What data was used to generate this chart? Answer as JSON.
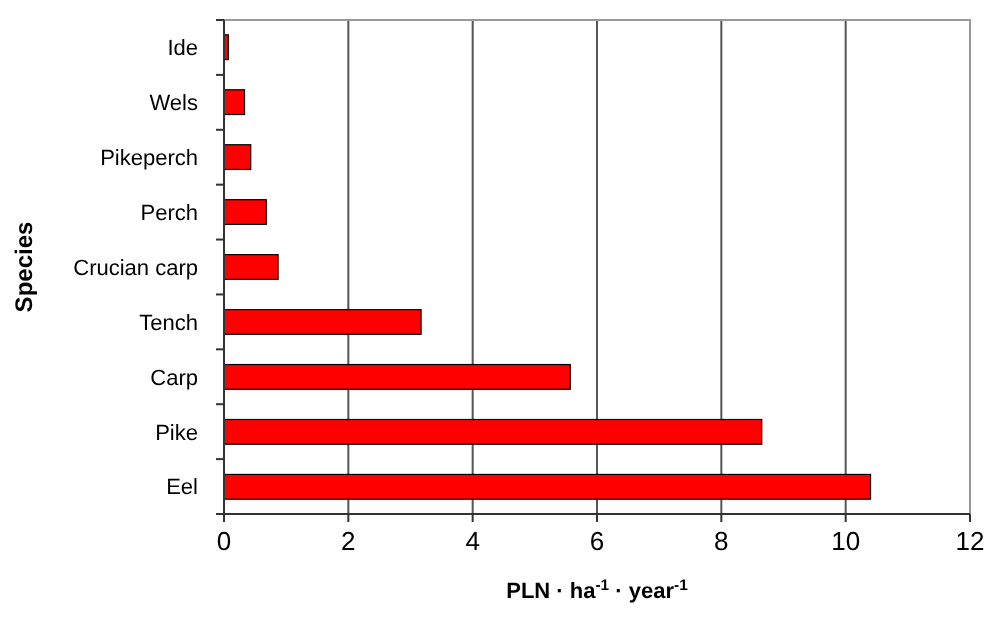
{
  "chart_data": {
    "type": "bar",
    "orientation": "horizontal",
    "xlabel": "PLN · ha$^{-1}$ · year$^{-1}$",
    "ylabel": "Species",
    "categories": [
      "Ide",
      "Wels",
      "Pikeperch",
      "Perch",
      "Crucian carp",
      "Tench",
      "Carp",
      "Pike",
      "Eel"
    ],
    "values": [
      0.07,
      0.33,
      0.43,
      0.68,
      0.87,
      3.17,
      5.57,
      8.65,
      10.4
    ],
    "color": "#ff0000",
    "xlim": [
      0,
      12
    ],
    "xticks": [
      0,
      2,
      4,
      6,
      8,
      10,
      12
    ],
    "grid": "x"
  }
}
